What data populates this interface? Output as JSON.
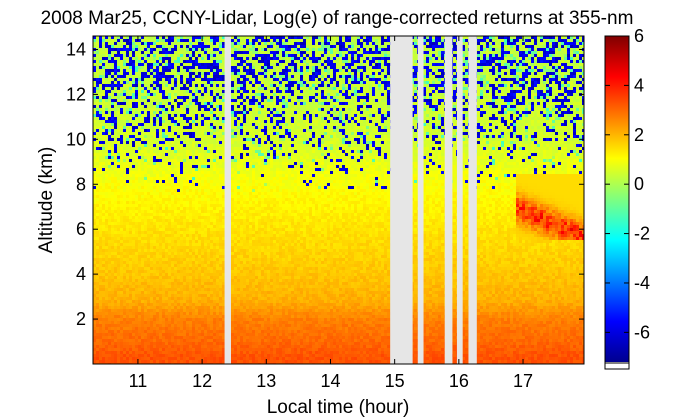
{
  "chart_data": {
    "type": "heatmap",
    "title": "2008 Mar25, CCNY-Lidar, Log(e) of range-corrected returns at 355-nm",
    "xlabel": "Local time (hour)",
    "ylabel": "Altitude (km)",
    "xlim": [
      10.3,
      17.95
    ],
    "ylim": [
      0,
      14.6
    ],
    "x_ticks": [
      11,
      12,
      13,
      14,
      15,
      16,
      17
    ],
    "y_ticks": [
      2,
      4,
      6,
      8,
      10,
      12,
      14
    ],
    "colorbar": {
      "range": [
        -7.2,
        6
      ],
      "ticks": [
        6,
        4,
        2,
        0,
        -2,
        -4,
        -6
      ],
      "colormap": "jet"
    },
    "no_data_color": "#e6e6e6",
    "data_gaps_hours": [
      [
        12.35,
        12.45
      ],
      [
        14.93,
        15.28
      ],
      [
        15.36,
        15.45
      ],
      [
        15.78,
        15.9
      ],
      [
        15.97,
        16.06
      ],
      [
        16.15,
        16.28
      ]
    ],
    "profile_by_altitude_km": [
      {
        "altitude": 0.3,
        "value": 3.3
      },
      {
        "altitude": 1.0,
        "value": 3.0
      },
      {
        "altitude": 2.0,
        "value": 2.7
      },
      {
        "altitude": 2.8,
        "value": 2.1
      },
      {
        "altitude": 4.0,
        "value": 1.8
      },
      {
        "altitude": 6.0,
        "value": 1.4
      },
      {
        "altitude": 8.0,
        "value": 1.0
      },
      {
        "altitude": 10.0,
        "value": 0.5
      },
      {
        "altitude": 12.0,
        "value": 0.4
      },
      {
        "altitude": 14.5,
        "value": 0.3
      }
    ],
    "aerosol_layer": {
      "time_range": [
        16.9,
        17.95
      ],
      "altitude_range": [
        5.5,
        8.5
      ],
      "peak_value": 4.8
    }
  }
}
